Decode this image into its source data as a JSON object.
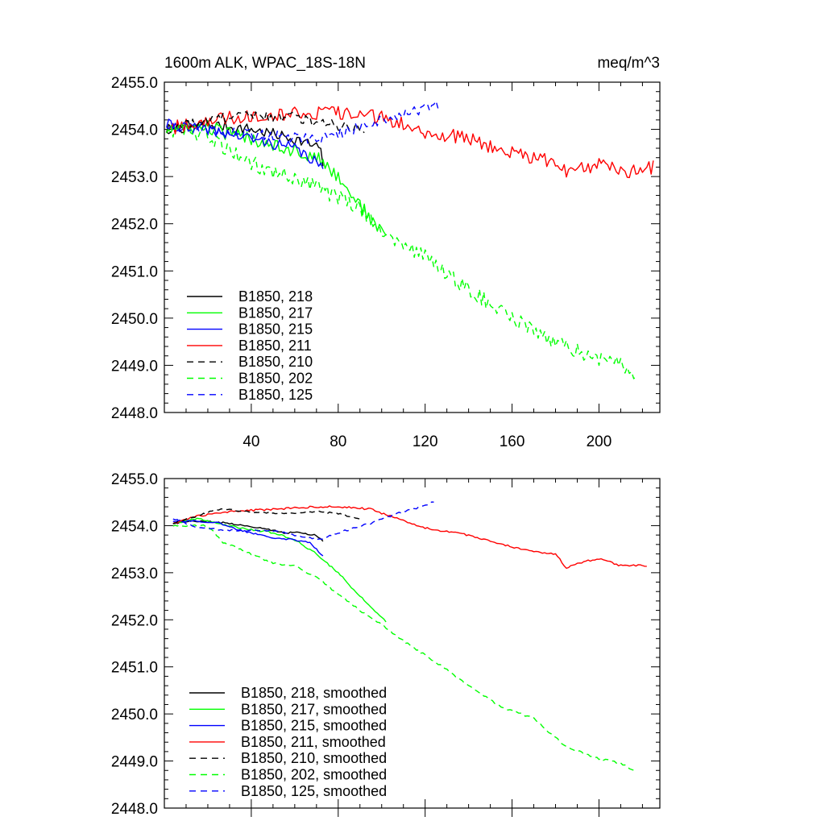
{
  "chart_data": [
    {
      "type": "line",
      "title": "1600m ALK, WPAC_18S-18N",
      "units": "meq/m^3",
      "xlim": [
        0,
        228
      ],
      "ylim": [
        2448.0,
        2455.0
      ],
      "xticks": [
        40,
        80,
        120,
        160,
        200
      ],
      "xtick_labels": [
        "40",
        "80",
        "120",
        "160",
        "200"
      ],
      "yticks": [
        2448.0,
        2449.0,
        2450.0,
        2451.0,
        2452.0,
        2453.0,
        2454.0,
        2455.0
      ],
      "ytick_labels": [
        "2448.0",
        "2449.0",
        "2450.0",
        "2451.0",
        "2452.0",
        "2453.0",
        "2454.0",
        "2455.0"
      ],
      "legend_position": "bottom-left",
      "series": [
        {
          "name": "B1850, 218",
          "color": "#000000",
          "dashed": false,
          "noise": 0.12,
          "points": [
            [
              1,
              2454.0
            ],
            [
              20,
              2454.1
            ],
            [
              40,
              2454.0
            ],
            [
              60,
              2453.8
            ],
            [
              72,
              2453.6
            ],
            [
              73,
              2453.15
            ]
          ]
        },
        {
          "name": "B1850, 217",
          "color": "#00ff00",
          "dashed": false,
          "noise": 0.15,
          "points": [
            [
              1,
              2454.0
            ],
            [
              20,
              2454.05
            ],
            [
              30,
              2453.9
            ],
            [
              50,
              2453.7
            ],
            [
              70,
              2453.4
            ],
            [
              80,
              2453.0
            ],
            [
              90,
              2452.4
            ],
            [
              100,
              2451.8
            ],
            [
              102,
              2451.85
            ]
          ]
        },
        {
          "name": "B1850, 215",
          "color": "#0000ff",
          "dashed": false,
          "noise": 0.12,
          "points": [
            [
              1,
              2454.1
            ],
            [
              20,
              2454.0
            ],
            [
              40,
              2453.8
            ],
            [
              60,
              2453.6
            ],
            [
              70,
              2453.3
            ],
            [
              73,
              2453.1
            ]
          ]
        },
        {
          "name": "B1850, 211",
          "color": "#ff0000",
          "dashed": false,
          "noise": 0.15,
          "points": [
            [
              1,
              2454.0
            ],
            [
              20,
              2454.2
            ],
            [
              40,
              2454.3
            ],
            [
              60,
              2454.35
            ],
            [
              80,
              2454.35
            ],
            [
              100,
              2454.25
            ],
            [
              110,
              2454.1
            ],
            [
              120,
              2453.95
            ],
            [
              140,
              2453.8
            ],
            [
              160,
              2453.5
            ],
            [
              180,
              2453.3
            ],
            [
              185,
              2453.1
            ],
            [
              200,
              2453.25
            ],
            [
              210,
              2453.1
            ],
            [
              225,
              2453.2
            ]
          ]
        },
        {
          "name": "B1850, 210",
          "color": "#000000",
          "dashed": true,
          "noise": 0.12,
          "points": [
            [
              1,
              2454.0
            ],
            [
              20,
              2454.2
            ],
            [
              40,
              2454.3
            ],
            [
              60,
              2454.25
            ],
            [
              80,
              2454.1
            ],
            [
              92,
              2454.0
            ]
          ]
        },
        {
          "name": "B1850, 202",
          "color": "#00ff00",
          "dashed": true,
          "noise": 0.17,
          "points": [
            [
              1,
              2454.0
            ],
            [
              20,
              2453.9
            ],
            [
              30,
              2453.5
            ],
            [
              50,
              2453.1
            ],
            [
              70,
              2452.8
            ],
            [
              90,
              2452.3
            ],
            [
              105,
              2451.7
            ],
            [
              120,
              2451.3
            ],
            [
              140,
              2450.6
            ],
            [
              160,
              2450.0
            ],
            [
              180,
              2449.5
            ],
            [
              200,
              2449.1
            ],
            [
              210,
              2449.0
            ],
            [
              218,
              2448.7
            ]
          ]
        },
        {
          "name": "B1850, 125",
          "color": "#0000ff",
          "dashed": true,
          "noise": 0.12,
          "points": [
            [
              1,
              2454.1
            ],
            [
              20,
              2453.95
            ],
            [
              40,
              2453.9
            ],
            [
              60,
              2453.85
            ],
            [
              70,
              2453.8
            ],
            [
              80,
              2453.9
            ],
            [
              100,
              2454.2
            ],
            [
              120,
              2454.45
            ],
            [
              127,
              2454.5
            ]
          ]
        }
      ]
    },
    {
      "type": "line",
      "title": "",
      "xlim": [
        0,
        228
      ],
      "ylim": [
        2448.0,
        2455.0
      ],
      "xticks": [
        40,
        80,
        120,
        160,
        200
      ],
      "xtick_labels": [],
      "yticks": [
        2448.0,
        2449.0,
        2450.0,
        2451.0,
        2452.0,
        2453.0,
        2454.0,
        2455.0
      ],
      "ytick_labels": [
        "2448.0",
        "2449.0",
        "2450.0",
        "2451.0",
        "2452.0",
        "2453.0",
        "2454.0",
        "2455.0"
      ],
      "legend_position": "bottom-left",
      "series": [
        {
          "name": "B1850, 218, smoothed",
          "color": "#000000",
          "dashed": false,
          "noise": 0.02,
          "points": [
            [
              4,
              2454.05
            ],
            [
              15,
              2454.1
            ],
            [
              30,
              2454.05
            ],
            [
              45,
              2453.95
            ],
            [
              55,
              2453.85
            ],
            [
              62,
              2453.85
            ],
            [
              70,
              2453.8
            ],
            [
              73,
              2453.65
            ]
          ]
        },
        {
          "name": "B1850, 217, smoothed",
          "color": "#00ff00",
          "dashed": false,
          "noise": 0.02,
          "points": [
            [
              4,
              2454.05
            ],
            [
              15,
              2454.15
            ],
            [
              25,
              2454.05
            ],
            [
              35,
              2453.95
            ],
            [
              50,
              2453.85
            ],
            [
              60,
              2453.7
            ],
            [
              70,
              2453.4
            ],
            [
              80,
              2453.0
            ],
            [
              90,
              2452.5
            ],
            [
              100,
              2452.05
            ],
            [
              102,
              2451.95
            ]
          ]
        },
        {
          "name": "B1850, 215, smoothed",
          "color": "#0000ff",
          "dashed": false,
          "noise": 0.02,
          "points": [
            [
              4,
              2454.1
            ],
            [
              15,
              2454.1
            ],
            [
              25,
              2454.05
            ],
            [
              35,
              2453.9
            ],
            [
              50,
              2453.75
            ],
            [
              60,
              2453.7
            ],
            [
              67,
              2453.65
            ],
            [
              73,
              2453.35
            ]
          ]
        },
        {
          "name": "B1850, 211, smoothed",
          "color": "#ff0000",
          "dashed": false,
          "noise": 0.02,
          "points": [
            [
              4,
              2454.05
            ],
            [
              15,
              2454.2
            ],
            [
              30,
              2454.3
            ],
            [
              50,
              2454.35
            ],
            [
              70,
              2454.4
            ],
            [
              80,
              2454.4
            ],
            [
              95,
              2454.35
            ],
            [
              110,
              2454.1
            ],
            [
              120,
              2453.95
            ],
            [
              140,
              2453.8
            ],
            [
              160,
              2453.55
            ],
            [
              170,
              2453.45
            ],
            [
              180,
              2453.4
            ],
            [
              185,
              2453.1
            ],
            [
              190,
              2453.2
            ],
            [
              200,
              2453.3
            ],
            [
              210,
              2453.15
            ],
            [
              222,
              2453.15
            ]
          ]
        },
        {
          "name": "B1850, 210, smoothed",
          "color": "#000000",
          "dashed": true,
          "noise": 0.02,
          "points": [
            [
              4,
              2454.05
            ],
            [
              15,
              2454.2
            ],
            [
              25,
              2454.35
            ],
            [
              40,
              2454.3
            ],
            [
              55,
              2454.25
            ],
            [
              70,
              2454.3
            ],
            [
              80,
              2454.25
            ],
            [
              90,
              2454.15
            ]
          ]
        },
        {
          "name": "B1850, 202, smoothed",
          "color": "#00ff00",
          "dashed": true,
          "noise": 0.02,
          "points": [
            [
              4,
              2454.0
            ],
            [
              20,
              2454.0
            ],
            [
              27,
              2453.65
            ],
            [
              40,
              2453.4
            ],
            [
              50,
              2453.2
            ],
            [
              60,
              2453.15
            ],
            [
              70,
              2452.9
            ],
            [
              80,
              2452.55
            ],
            [
              90,
              2452.2
            ],
            [
              100,
              2451.9
            ],
            [
              110,
              2451.55
            ],
            [
              125,
              2451.1
            ],
            [
              140,
              2450.6
            ],
            [
              155,
              2450.15
            ],
            [
              170,
              2449.9
            ],
            [
              185,
              2449.3
            ],
            [
              200,
              2449.05
            ],
            [
              210,
              2448.95
            ],
            [
              216,
              2448.8
            ]
          ]
        },
        {
          "name": "B1850, 125, smoothed",
          "color": "#0000ff",
          "dashed": true,
          "noise": 0.02,
          "points": [
            [
              4,
              2454.15
            ],
            [
              15,
              2453.95
            ],
            [
              30,
              2453.9
            ],
            [
              50,
              2453.9
            ],
            [
              65,
              2453.75
            ],
            [
              72,
              2453.7
            ],
            [
              80,
              2453.85
            ],
            [
              95,
              2454.05
            ],
            [
              110,
              2454.3
            ],
            [
              118,
              2454.4
            ],
            [
              124,
              2454.5
            ]
          ]
        }
      ]
    }
  ]
}
